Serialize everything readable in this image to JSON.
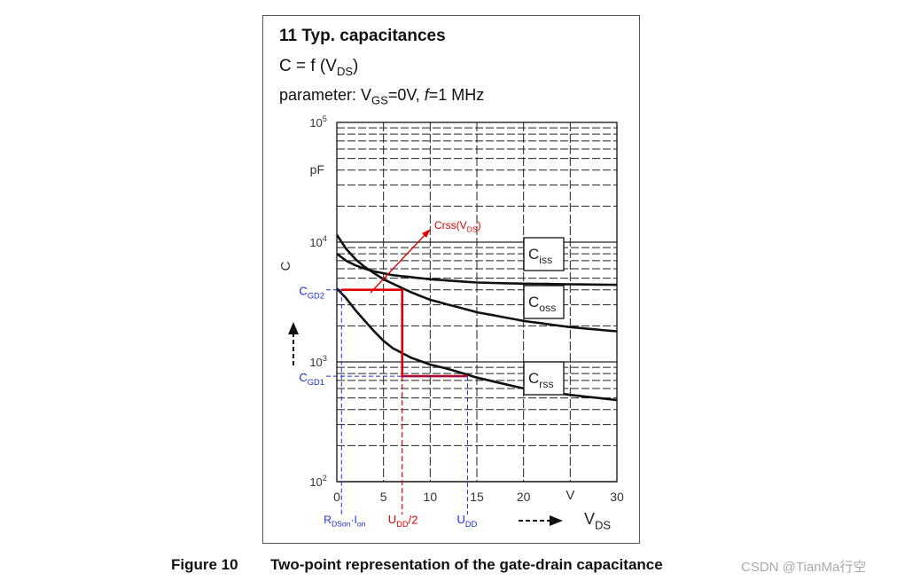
{
  "header": {
    "title": "11 Typ. capacitances",
    "eq_prefix": "C = f (V",
    "eq_sub": "DS",
    "eq_suffix": ")",
    "param_prefix": "parameter: V",
    "param_sub": "GS",
    "param_mid": "=0V, ",
    "param_f": "f",
    "param_suffix": "=1 MHz"
  },
  "caption": {
    "number": "Figure 10",
    "text": "Two-point representation of the gate-drain capacitance"
  },
  "watermark": "CSDN @TianMa行空",
  "chart_data": {
    "type": "line",
    "xlabel": "V",
    "xlabel_sub": "DS",
    "ylabel": "C",
    "yunit": "pF",
    "xunit": "V",
    "xlim": [
      0,
      30
    ],
    "ylim": [
      100,
      100000
    ],
    "yscale": "log",
    "xticks": [
      {
        "value": 0,
        "label": "0"
      },
      {
        "value": 5,
        "label": "5"
      },
      {
        "value": 10,
        "label": "10"
      },
      {
        "value": 15,
        "label": "15"
      },
      {
        "value": 20,
        "label": "20"
      },
      {
        "value": 30,
        "label": "30"
      }
    ],
    "yticks": [
      {
        "value": 100,
        "base": "10",
        "exp": "2"
      },
      {
        "value": 1000,
        "base": "10",
        "exp": "3"
      },
      {
        "value": 10000,
        "base": "10",
        "exp": "4"
      },
      {
        "value": 100000,
        "base": "10",
        "exp": "5"
      }
    ],
    "series": [
      {
        "name": "Ciss",
        "label_main": "C",
        "label_sub": "iss",
        "x": [
          0,
          1,
          2,
          3,
          4,
          5,
          6,
          8,
          10,
          15,
          20,
          25,
          30
        ],
        "y": [
          8000,
          7000,
          6400,
          6000,
          5700,
          5500,
          5300,
          5100,
          4900,
          4600,
          4500,
          4450,
          4400
        ]
      },
      {
        "name": "Coss",
        "label_main": "C",
        "label_sub": "oss",
        "x": [
          0,
          1,
          2,
          3,
          4,
          5,
          6,
          8,
          10,
          15,
          20,
          25,
          30
        ],
        "y": [
          11500,
          8800,
          7200,
          6200,
          5500,
          4900,
          4500,
          3800,
          3300,
          2600,
          2200,
          1950,
          1800
        ]
      },
      {
        "name": "Crss",
        "label_main": "C",
        "label_sub": "rss",
        "x": [
          0,
          1,
          2,
          3,
          4,
          5,
          6,
          8,
          10,
          12,
          15,
          20,
          25,
          30
        ],
        "y": [
          4100,
          3400,
          2700,
          2200,
          1800,
          1500,
          1300,
          1080,
          950,
          870,
          740,
          600,
          530,
          480
        ]
      }
    ],
    "annotations": {
      "crss_arrow": {
        "label": "Crss(V",
        "sub": "DS",
        "suffix": ")"
      },
      "cgd2": {
        "label": "C",
        "sub": "GD2",
        "value": 4000
      },
      "cgd1": {
        "label": "C",
        "sub": "GD1",
        "value": 760
      },
      "rds": {
        "label": "R",
        "sub": "DSon",
        "mid": "·I",
        "sub2": "on",
        "x": 0.5
      },
      "udd_half": {
        "label": "U",
        "sub": "DD",
        "suffix": "/2",
        "x": 7
      },
      "udd": {
        "label": "U",
        "sub": "DD",
        "x": 14
      }
    },
    "colors": {
      "curve": "#111111",
      "red": "#e00000",
      "blue": "#1a2fd0",
      "grid": "#222222"
    }
  }
}
